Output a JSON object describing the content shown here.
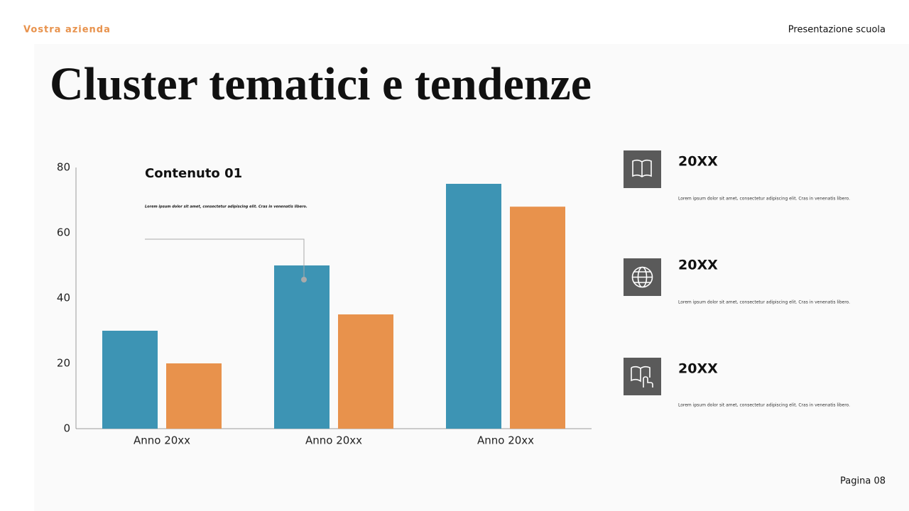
{
  "header": {
    "company": "Vostra azienda",
    "presentation": "Presentazione scuola"
  },
  "title": "Cluster tematici e tendenze",
  "chart_data": {
    "type": "bar",
    "categories": [
      "Anno 20xx",
      "Anno 20xx",
      "Anno 20xx"
    ],
    "series": [
      {
        "color": "#3d94b4",
        "values": [
          30,
          50,
          75
        ]
      },
      {
        "color": "#e8924c",
        "values": [
          20,
          35,
          68
        ]
      }
    ],
    "ylim": [
      0,
      80
    ],
    "yticks": [
      0,
      20,
      40,
      60,
      80
    ],
    "grid": false,
    "annotations": [
      {
        "title": "Contenuto 01",
        "text": "Lorem ipsum dolor sit amet, consectetur adipiscing elit. Cras in venenatis libero."
      }
    ]
  },
  "side_items": [
    {
      "title": "20XX",
      "text": "Lorem ipsum dolor sit amet, consectetur adipiscing elit. Cras in venenatis libero."
    },
    {
      "title": "20XX",
      "text": "Lorem ipsum dolor sit amet, consectetur adipiscing elit. Cras in venenatis libero."
    },
    {
      "title": "20XX",
      "text": "Lorem ipsum dolor sit amet, consectetur adipiscing elit. Cras in venenatis libero."
    }
  ],
  "footer": {
    "page": "Pagina 08"
  }
}
